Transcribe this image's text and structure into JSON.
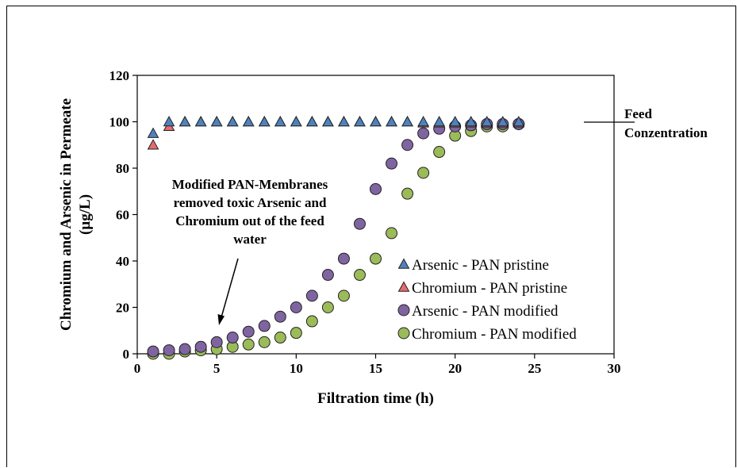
{
  "chart_data": {
    "type": "scatter",
    "title": "",
    "xlabel": "Filtration time (h)",
    "ylabel_lines": [
      "Chromium and Arsenic in Permeate",
      "(µg/L)"
    ],
    "xlim": [
      0,
      30
    ],
    "ylim": [
      0,
      120
    ],
    "xticks": [
      "0",
      "5",
      "10",
      "15",
      "20",
      "25",
      "30"
    ],
    "yticks": [
      "0",
      "20",
      "40",
      "60",
      "80",
      "100",
      "120"
    ],
    "grid": false,
    "legend_position": "bottom-right",
    "series": [
      {
        "name": "Arsenic - PAN pristine",
        "marker": "triangle",
        "color": "#4f81bd",
        "x": [
          1,
          2,
          3,
          4,
          5,
          6,
          7,
          8,
          9,
          10,
          11,
          12,
          13,
          14,
          15,
          16,
          17,
          18,
          19,
          20,
          21,
          22,
          23,
          24
        ],
        "y": [
          95,
          100,
          100,
          100,
          100,
          100,
          100,
          100,
          100,
          100,
          100,
          100,
          100,
          100,
          100,
          100,
          100,
          100,
          100,
          100,
          100,
          100,
          100,
          100
        ]
      },
      {
        "name": "Chromium - PAN pristine",
        "marker": "triangle",
        "color": "#e46c6c",
        "x": [
          1,
          2,
          3,
          4,
          5,
          6,
          7,
          8,
          9,
          10,
          11,
          12,
          13,
          14,
          15,
          16,
          17,
          18,
          19,
          20,
          21,
          22,
          23,
          24
        ],
        "y": [
          90,
          98,
          100,
          100,
          100,
          100,
          100,
          100,
          100,
          100,
          100,
          100,
          100,
          100,
          100,
          100,
          100,
          99.5,
          99.5,
          99.5,
          99.5,
          99.5,
          99.5,
          99.5
        ]
      },
      {
        "name": "Arsenic - PAN modified",
        "marker": "circle",
        "color": "#8064a2",
        "x": [
          1,
          2,
          3,
          4,
          5,
          6,
          7,
          8,
          9,
          10,
          11,
          12,
          13,
          14,
          15,
          16,
          17,
          18,
          19,
          20,
          21,
          22,
          23,
          24
        ],
        "y": [
          1,
          1.5,
          2,
          3,
          5,
          7,
          9.5,
          12,
          16,
          20,
          25,
          34,
          41,
          56,
          71,
          82,
          90,
          95,
          97,
          98,
          98.5,
          99,
          99,
          99
        ]
      },
      {
        "name": "Chromium - PAN modified",
        "marker": "circle",
        "color": "#9bbb59",
        "x": [
          1,
          2,
          3,
          4,
          5,
          6,
          7,
          8,
          9,
          10,
          11,
          12,
          13,
          14,
          15,
          16,
          17,
          18,
          19,
          20,
          21,
          22,
          23,
          24
        ],
        "y": [
          0,
          0,
          1,
          1.5,
          2,
          3,
          4,
          5,
          7,
          9,
          14,
          20,
          25,
          34,
          41,
          52,
          69,
          78,
          87,
          94,
          96,
          98,
          98,
          99
        ]
      }
    ],
    "annotations": {
      "membrane_note_lines": [
        "Modified PAN-Membranes",
        "removed toxic Arsenic and",
        "Chromium out of the feed",
        "water"
      ],
      "feed_lines": [
        "Feed",
        "Conzentration"
      ],
      "feed_line_y": 100
    }
  }
}
